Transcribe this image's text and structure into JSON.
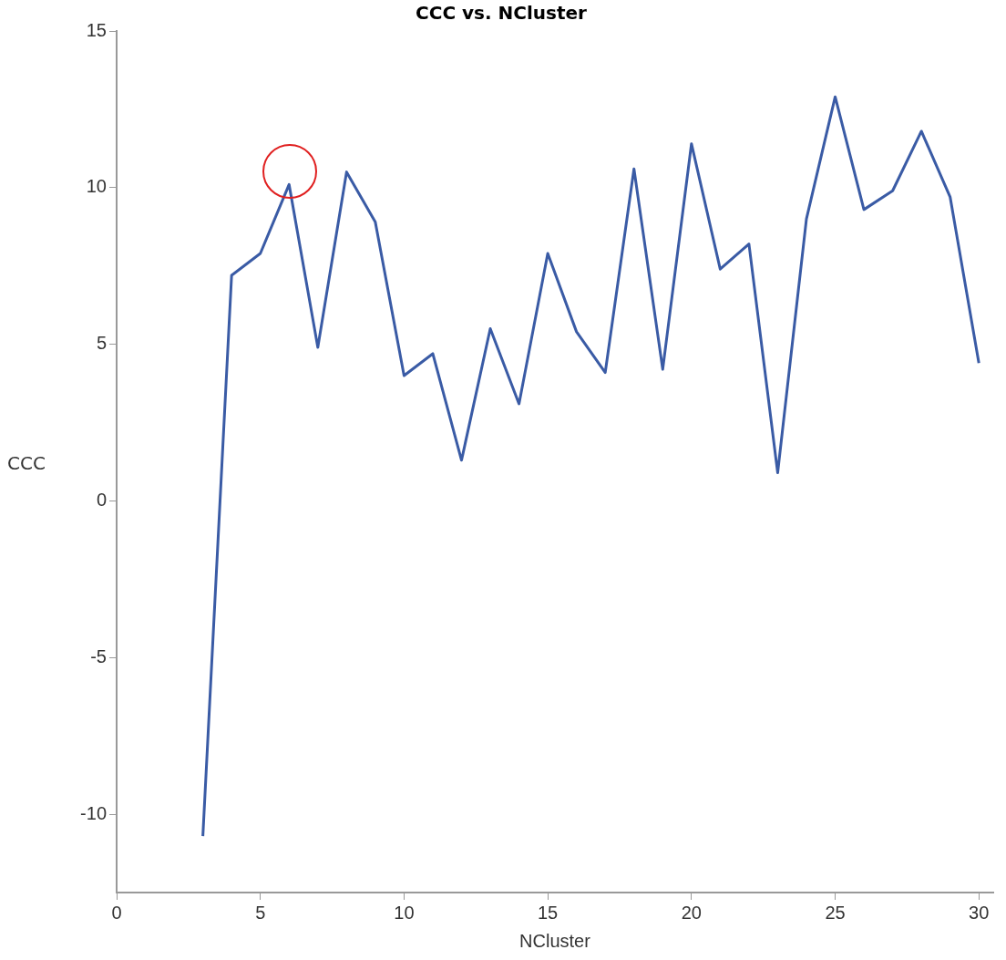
{
  "chart_data": {
    "type": "line",
    "title": "CCC vs. NCluster",
    "xlabel": "NCluster",
    "ylabel": "CCC",
    "x": [
      3,
      4,
      5,
      6,
      7,
      8,
      9,
      10,
      11,
      12,
      13,
      14,
      15,
      16,
      17,
      18,
      19,
      20,
      21,
      22,
      23,
      24,
      25,
      26,
      27,
      28,
      29,
      30
    ],
    "series": [
      {
        "color": "#3a5ba5",
        "values": [
          -10.7,
          7.2,
          7.9,
          10.1,
          4.9,
          10.5,
          8.9,
          4.0,
          4.7,
          1.3,
          5.5,
          3.1,
          7.9,
          5.4,
          4.1,
          10.6,
          4.2,
          11.4,
          7.4,
          8.2,
          0.9,
          9.0,
          12.9,
          9.3,
          9.9,
          11.8,
          9.7,
          4.4
        ]
      }
    ],
    "xlim": [
      0,
      30.5
    ],
    "xticks": [
      0,
      5,
      10,
      15,
      20,
      25,
      30
    ],
    "ylim": [
      -12.5,
      15
    ],
    "yticks": [
      -10,
      -5,
      0,
      5,
      10,
      15
    ],
    "grid": false,
    "legend": false,
    "marker": "none",
    "line_style": "solid"
  }
}
